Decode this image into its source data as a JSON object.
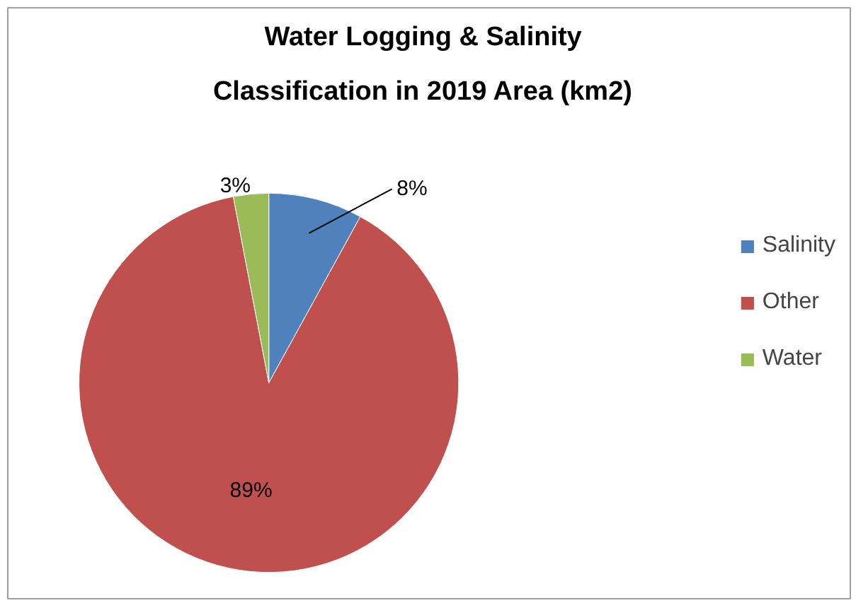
{
  "chart_data": {
    "type": "pie",
    "title": "Water Logging & Salinity Classification in 2019 Area (km2)",
    "categories": [
      "Salinity",
      "Other",
      "Water"
    ],
    "values": [
      8,
      89,
      3
    ],
    "colors": [
      "#4f81bd",
      "#c0504d",
      "#9bbb59"
    ],
    "value_labels": [
      "8%",
      "89%",
      "3%"
    ],
    "legend": "right"
  }
}
